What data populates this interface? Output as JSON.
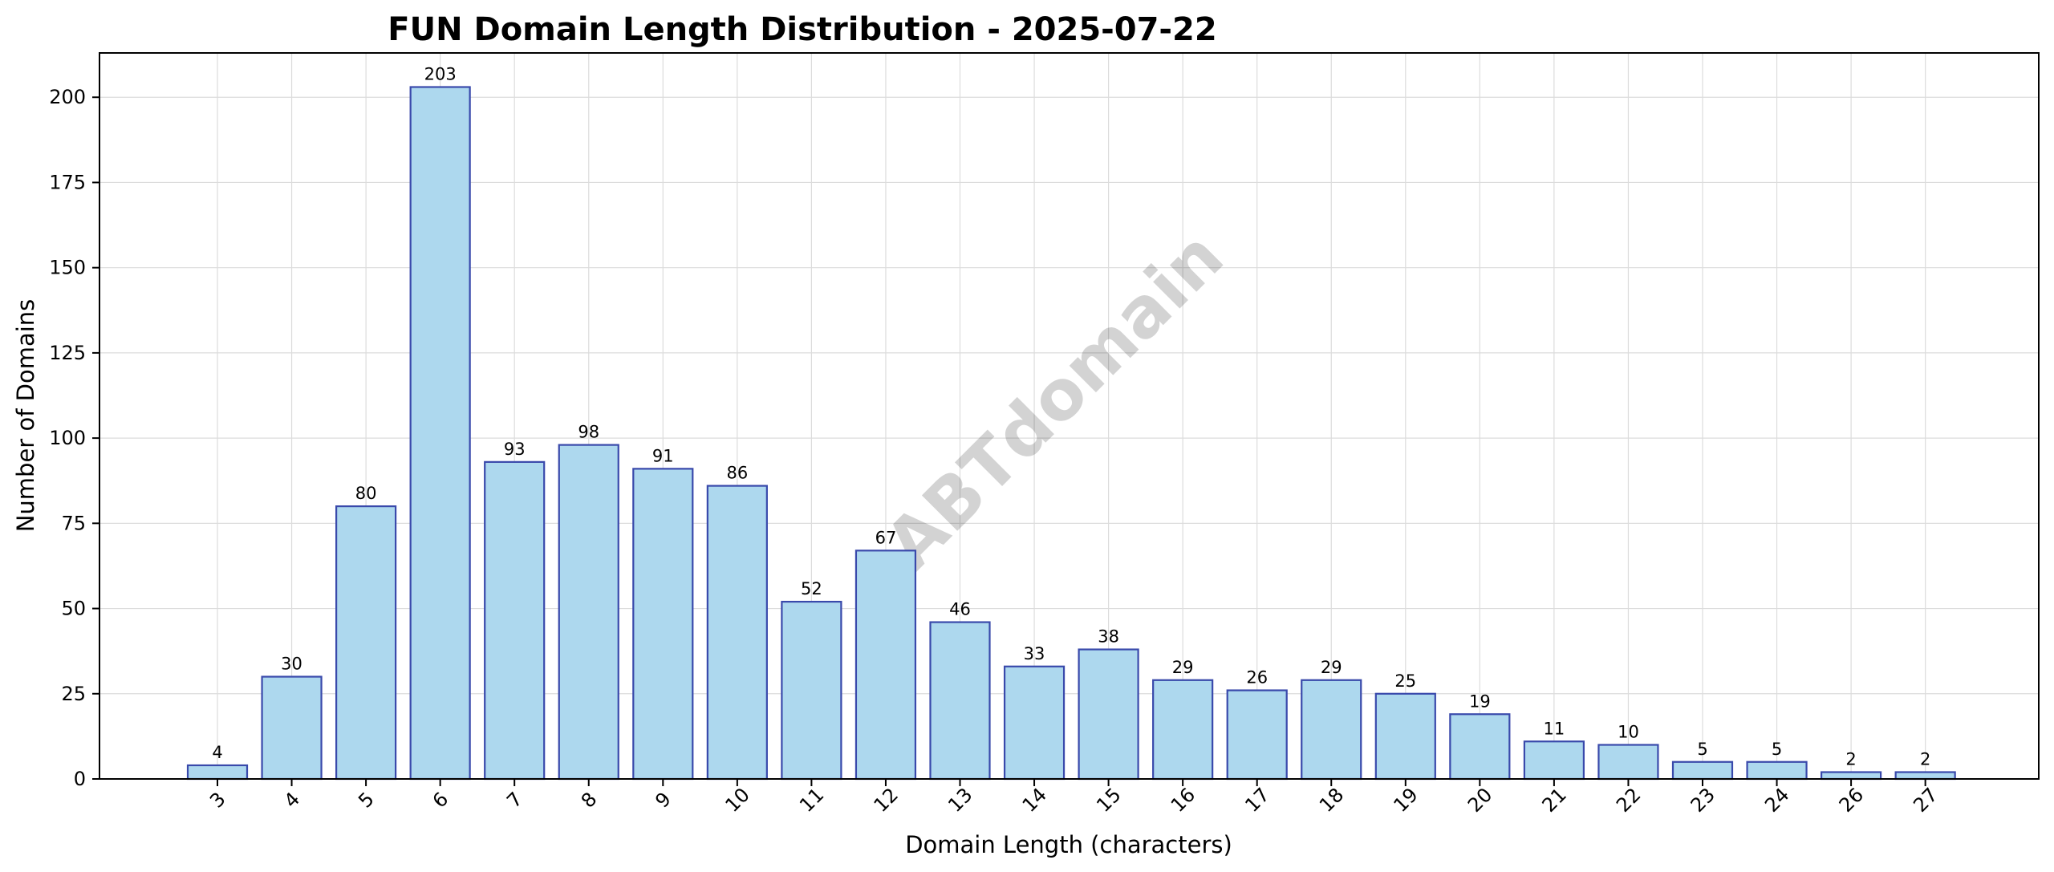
{
  "chart_data": {
    "type": "bar",
    "title": "FUN Domain Length Distribution - 2025-07-22",
    "xlabel": "Domain Length (characters)",
    "ylabel": "Number of Domains",
    "categories": [
      "3",
      "4",
      "5",
      "6",
      "7",
      "8",
      "9",
      "10",
      "11",
      "12",
      "13",
      "14",
      "15",
      "16",
      "17",
      "18",
      "19",
      "20",
      "21",
      "22",
      "23",
      "24",
      "26",
      "27"
    ],
    "values": [
      4,
      30,
      80,
      203,
      93,
      98,
      91,
      86,
      52,
      67,
      46,
      33,
      38,
      29,
      26,
      29,
      25,
      19,
      11,
      10,
      5,
      5,
      2,
      2
    ],
    "ylim": [
      0,
      213
    ],
    "yticks": [
      0,
      25,
      50,
      75,
      100,
      125,
      150,
      175,
      200
    ],
    "grid": true,
    "legend": "none",
    "x_tick_rotation": 45,
    "data_labels": true,
    "colors": {
      "bar_fill": "#add8ee",
      "bar_edge": "#3949ab",
      "grid": "#dcdcdc"
    }
  },
  "watermark": "ABTdomain"
}
